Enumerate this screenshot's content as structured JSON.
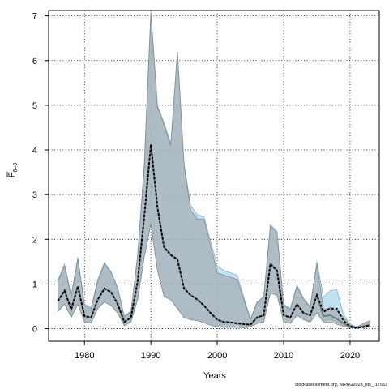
{
  "chart_data": {
    "type": "area",
    "xlabel": "Years",
    "ylabel_main": "F",
    "ylabel_sub": "6–9",
    "credit": "stockassessment.org, NIPAG2023_ids_r17553",
    "xlim": [
      1974.6,
      2024.4
    ],
    "ylim": [
      -0.28,
      7.12
    ],
    "xticks": [
      1980,
      1990,
      2000,
      2010,
      2020
    ],
    "yticks": [
      0,
      1,
      2,
      3,
      4,
      5,
      6,
      7
    ],
    "grid": true,
    "colors": {
      "band_light": "#aed8f0",
      "band_dark": "#9f9f9f",
      "overlap": "#a2c4d6",
      "line": "#000000"
    },
    "x": [
      1976,
      1977,
      1978,
      1979,
      1980,
      1981,
      1982,
      1983,
      1984,
      1985,
      1986,
      1987,
      1988,
      1989,
      1990,
      1991,
      1992,
      1993,
      1994,
      1995,
      1996,
      1997,
      1998,
      1999,
      2000,
      2001,
      2002,
      2003,
      2004,
      2005,
      2006,
      2007,
      2008,
      2009,
      2010,
      2011,
      2012,
      2013,
      2014,
      2015,
      2016,
      2017,
      2018,
      2019,
      2020,
      2021,
      2022,
      2023
    ],
    "series": [
      {
        "values": [
          0.62,
          0.85,
          0.43,
          0.95,
          0.28,
          0.25,
          0.65,
          0.9,
          0.82,
          0.55,
          0.15,
          0.25,
          1.05,
          2.5,
          4.12,
          2.7,
          1.82,
          1.65,
          1.55,
          0.9,
          0.75,
          0.65,
          0.52,
          0.35,
          0.2,
          0.15,
          0.14,
          0.12,
          0.1,
          0.09,
          0.25,
          0.3,
          1.45,
          1.3,
          0.3,
          0.25,
          0.55,
          0.35,
          0.3,
          0.75,
          0.38,
          0.45,
          0.45,
          0.18,
          0.05,
          0.02,
          0.04,
          0.08
        ],
        "upper": [
          1.08,
          1.45,
          0.75,
          1.6,
          0.55,
          0.48,
          1.1,
          1.48,
          1.28,
          0.92,
          0.28,
          0.4,
          1.65,
          3.7,
          7.1,
          5.0,
          4.6,
          4.15,
          6.2,
          3.7,
          2.75,
          2.55,
          2.5,
          1.95,
          1.4,
          1.3,
          1.25,
          1.2,
          0.7,
          0.22,
          0.6,
          0.72,
          2.33,
          2.18,
          0.55,
          0.45,
          0.98,
          0.68,
          0.5,
          1.5,
          0.7,
          0.85,
          0.88,
          0.32,
          0.1,
          0.04,
          0.09,
          0.15
        ],
        "lower": [
          0.38,
          0.55,
          0.25,
          0.55,
          0.15,
          0.13,
          0.45,
          0.6,
          0.52,
          0.35,
          0.07,
          0.15,
          0.65,
          1.6,
          2.35,
          1.3,
          0.72,
          0.65,
          0.45,
          0.25,
          0.2,
          0.18,
          0.13,
          0.08,
          0.04,
          0.03,
          0.03,
          0.03,
          0.02,
          0.04,
          0.12,
          0.15,
          0.8,
          0.75,
          0.15,
          0.12,
          0.3,
          0.2,
          0.15,
          0.35,
          0.18,
          0.2,
          0.15,
          0.08,
          0.02,
          0.01,
          0.02,
          0.04
        ]
      },
      {
        "values": [
          0.62,
          0.85,
          0.43,
          0.95,
          0.28,
          0.25,
          0.65,
          0.9,
          0.82,
          0.55,
          0.15,
          0.25,
          1.05,
          2.5,
          4.12,
          2.7,
          1.82,
          1.65,
          1.55,
          0.9,
          0.75,
          0.65,
          0.52,
          0.35,
          0.2,
          0.15,
          0.14,
          0.12,
          0.1,
          0.09,
          0.25,
          0.3,
          1.45,
          1.3,
          0.3,
          0.25,
          0.55,
          0.35,
          0.3,
          0.75,
          0.28,
          0.3,
          0.22,
          0.12,
          0.04,
          0.02,
          0.05,
          0.08
        ],
        "upper": [
          1.05,
          1.4,
          0.72,
          1.55,
          0.52,
          0.45,
          1.05,
          1.45,
          1.25,
          0.9,
          0.26,
          0.38,
          1.6,
          3.6,
          7.05,
          4.95,
          4.55,
          4.1,
          6.2,
          3.65,
          2.65,
          2.45,
          2.45,
          1.85,
          1.25,
          1.2,
          1.15,
          1.1,
          0.65,
          0.2,
          0.58,
          0.7,
          2.3,
          2.15,
          0.52,
          0.42,
          0.95,
          0.65,
          0.48,
          1.45,
          0.42,
          0.48,
          0.4,
          0.25,
          0.08,
          0.04,
          0.12,
          0.18
        ],
        "lower": [
          0.38,
          0.55,
          0.25,
          0.55,
          0.15,
          0.13,
          0.45,
          0.6,
          0.52,
          0.35,
          0.07,
          0.15,
          0.65,
          1.6,
          2.35,
          1.3,
          0.72,
          0.65,
          0.45,
          0.25,
          0.2,
          0.18,
          0.13,
          0.08,
          0.04,
          0.03,
          0.03,
          0.03,
          0.02,
          0.04,
          0.12,
          0.15,
          0.8,
          0.75,
          0.15,
          0.12,
          0.3,
          0.2,
          0.15,
          0.35,
          0.15,
          0.15,
          0.1,
          0.05,
          0.02,
          0.01,
          0.02,
          0.04
        ]
      }
    ]
  }
}
